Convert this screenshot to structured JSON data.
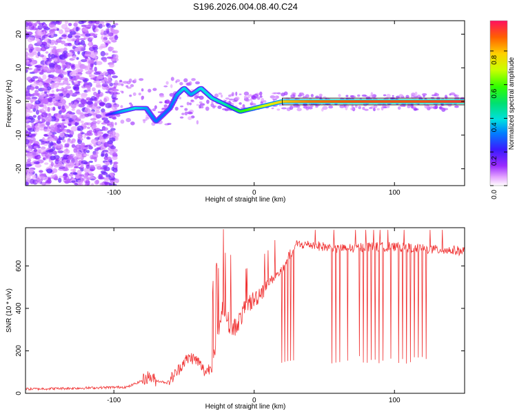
{
  "page_title": "S196.2026.004.08.40.C24",
  "chart_data": [
    {
      "type": "heatmap",
      "title": "S196.2026.004.08.40.C24",
      "xlabel": "Height of straight line (km)",
      "ylabel": "Frequency (Hz)",
      "xlim": [
        -163,
        150
      ],
      "ylim": [
        -25,
        24
      ],
      "x_ticks": [
        -100,
        0,
        100
      ],
      "y_ticks": [
        -20,
        -10,
        0,
        10,
        20
      ],
      "colorbar": {
        "label": "Normalized spectral amplitude",
        "range": [
          0,
          0.98
        ],
        "ticks": [
          0,
          0.2,
          0.4,
          0.6,
          0.8
        ],
        "tick_labels": [
          "0.0",
          "0.2",
          "0.4",
          "0.6",
          "0.8"
        ]
      },
      "track_points": [
        {
          "x": -105,
          "y": -4,
          "amp": 0.15
        },
        {
          "x": -95,
          "y": -3,
          "amp": 0.35
        },
        {
          "x": -85,
          "y": -2,
          "amp": 0.4
        },
        {
          "x": -77,
          "y": -2,
          "amp": 0.35
        },
        {
          "x": -70,
          "y": -6,
          "amp": 0.3
        },
        {
          "x": -60,
          "y": -2,
          "amp": 0.3
        },
        {
          "x": -55,
          "y": 2,
          "amp": 0.35
        },
        {
          "x": -50,
          "y": 4,
          "amp": 0.4
        },
        {
          "x": -45,
          "y": 2,
          "amp": 0.35
        },
        {
          "x": -38,
          "y": 4,
          "amp": 0.4
        },
        {
          "x": -30,
          "y": 1,
          "amp": 0.4
        },
        {
          "x": -20,
          "y": -1,
          "amp": 0.45
        },
        {
          "x": -10,
          "y": -3,
          "amp": 0.55
        },
        {
          "x": 0,
          "y": -2,
          "amp": 0.65
        },
        {
          "x": 10,
          "y": -1,
          "amp": 0.72
        },
        {
          "x": 20,
          "y": 0,
          "amp": 0.8
        },
        {
          "x": 40,
          "y": 0,
          "amp": 0.88
        },
        {
          "x": 80,
          "y": 0,
          "amp": 0.92
        },
        {
          "x": 120,
          "y": 0,
          "amp": 0.92
        },
        {
          "x": 150,
          "y": 0,
          "amp": 0.95
        }
      ]
    },
    {
      "type": "line",
      "xlabel": "Height of straight line (km)",
      "ylabel": "SNR (10 * v/v)",
      "xlim": [
        -163,
        150
      ],
      "ylim": [
        0,
        780
      ],
      "x_ticks": [
        -100,
        0,
        100
      ],
      "y_ticks": [
        0,
        200,
        400,
        600
      ],
      "series": [
        {
          "name": "SNR",
          "color": "#f03030",
          "x": [
            -163,
            -120,
            -90,
            -80,
            -75,
            -70,
            -62,
            -55,
            -50,
            -45,
            -40,
            -35,
            -30,
            -25,
            -22,
            -18,
            -15,
            -10,
            -5,
            0,
            5,
            10,
            15,
            20,
            25,
            30,
            40,
            50,
            60,
            80,
            100,
            120,
            150
          ],
          "y": [
            20,
            25,
            30,
            60,
            80,
            60,
            50,
            100,
            150,
            170,
            150,
            100,
            130,
            300,
            420,
            330,
            300,
            350,
            420,
            440,
            480,
            520,
            550,
            580,
            650,
            700,
            700,
            690,
            680,
            690,
            690,
            680,
            670
          ]
        }
      ]
    }
  ]
}
